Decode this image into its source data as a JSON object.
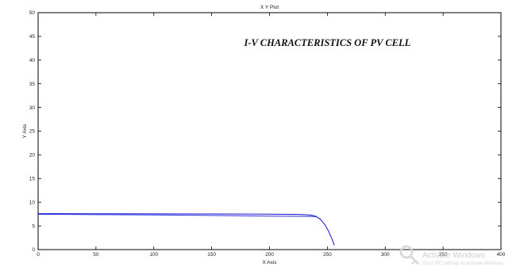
{
  "chart_data": {
    "type": "line",
    "title": "X Y Plot",
    "xlabel": "X Axis",
    "ylabel": "Y Axis",
    "xlim": [
      0,
      400
    ],
    "ylim": [
      0,
      50
    ],
    "xticks": [
      0,
      50,
      100,
      150,
      200,
      250,
      300,
      350,
      400
    ],
    "yticks": [
      0,
      5,
      10,
      15,
      20,
      25,
      30,
      35,
      40,
      45,
      50
    ],
    "grid": false,
    "annotations": [
      {
        "text": "I-V CHARACTERISTICS OF PV CELL",
        "x": 250,
        "y": 43
      }
    ],
    "series": [
      {
        "color": "#1010d0",
        "x": [
          0,
          50,
          100,
          150,
          200,
          225,
          235,
          240,
          244,
          248,
          251,
          253,
          255,
          256
        ],
        "y": [
          7.6,
          7.58,
          7.55,
          7.52,
          7.48,
          7.42,
          7.3,
          7.05,
          6.4,
          5.2,
          3.9,
          2.8,
          1.6,
          0.9
        ]
      },
      {
        "color": "#3030e0",
        "x": [
          0,
          50,
          100,
          150,
          200,
          225,
          232,
          236,
          240,
          244
        ],
        "y": [
          7.45,
          7.38,
          7.3,
          7.2,
          7.08,
          7.02,
          7.0,
          7.02,
          6.95,
          6.5
        ]
      }
    ]
  },
  "watermark": {
    "title": "Activate Windows",
    "subtitle": "Go to PC settings to activate Windows."
  }
}
